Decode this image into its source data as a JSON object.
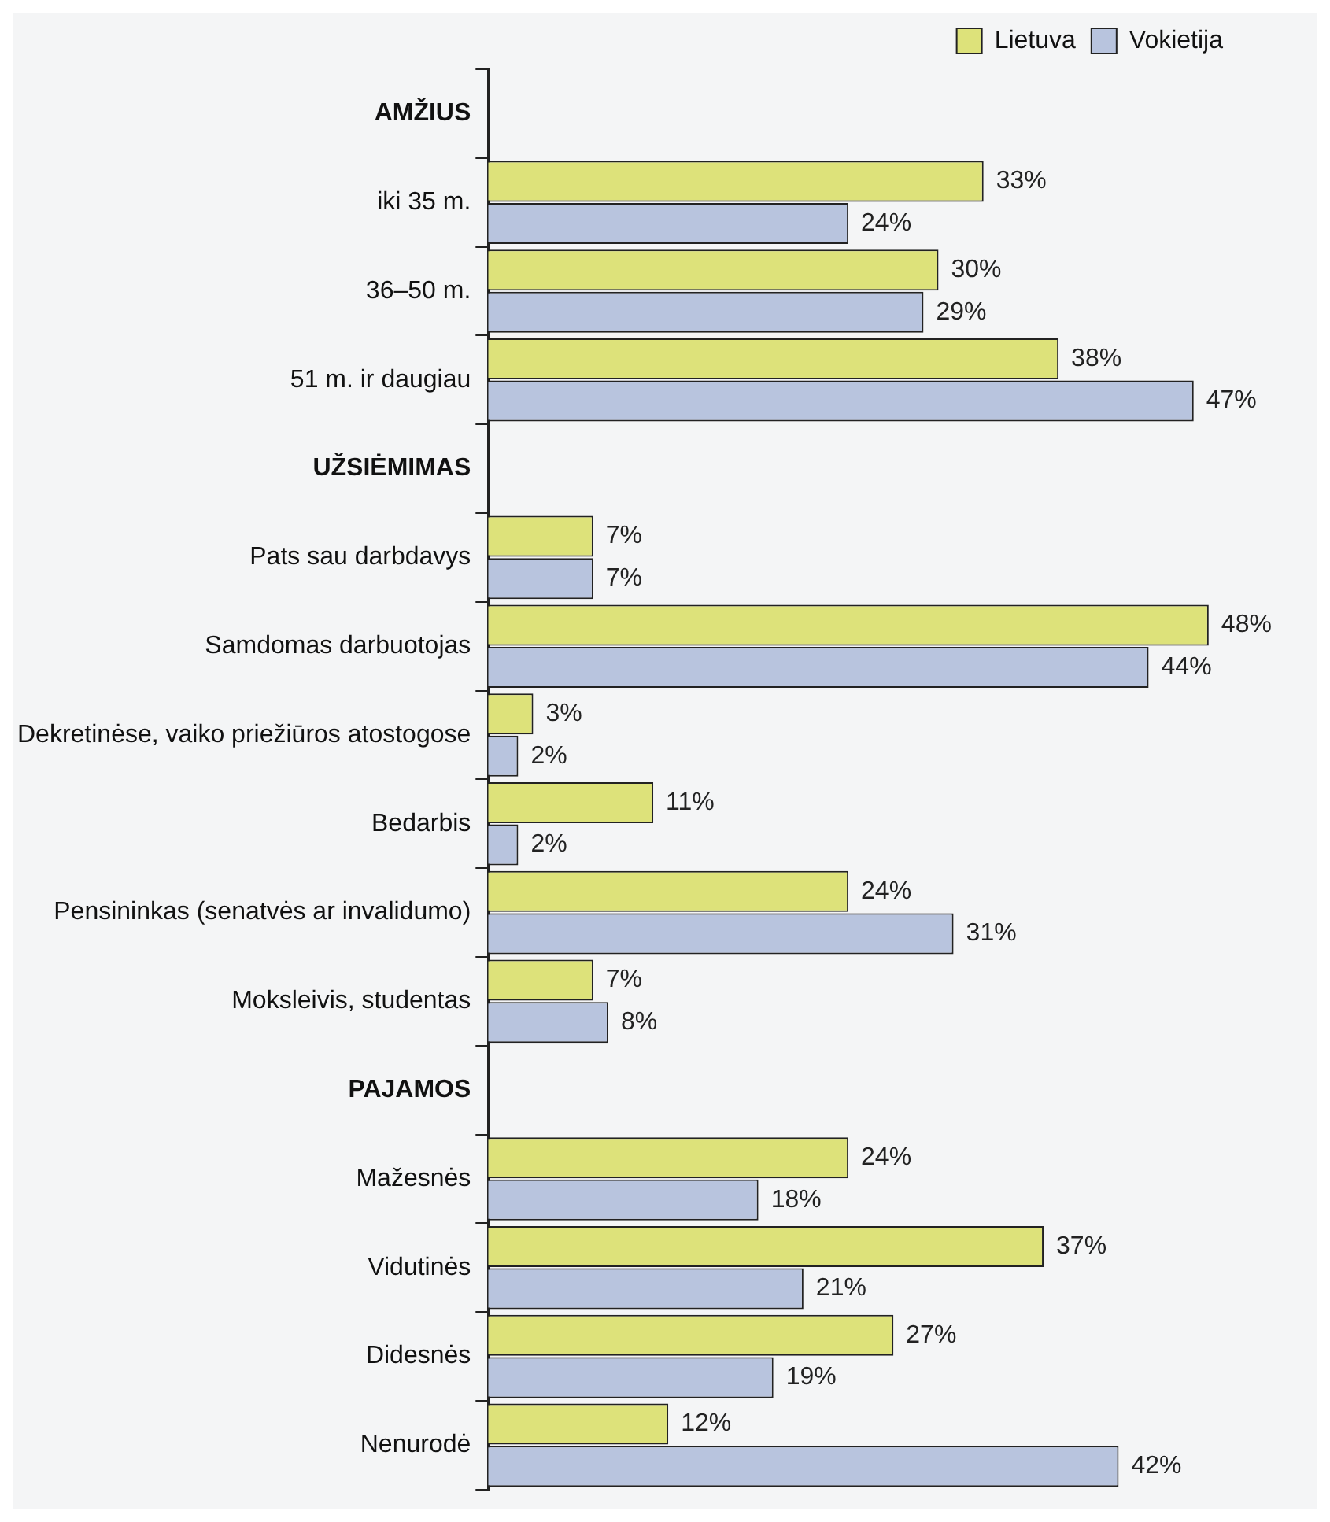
{
  "chart_data": {
    "type": "bar",
    "orientation": "horizontal",
    "legend": "top right",
    "categories": [
      "AMŽIUS",
      "iki 35 m.",
      "36–50 m.",
      "51 m. ir daugiau",
      "UŽSIĖMIMAS",
      "Pats sau darbdavys",
      "Samdomas darbuotojas",
      "Dekretinėse, vaiko priežiūros atostogose",
      "Bedarbis",
      "Pensininkas (senatvės ar invalidumo)",
      "Moksleivis, studentas",
      "PAJAMOS",
      "Mažesnės",
      "Vidutinės",
      "Didesnės",
      "Nenurodė"
    ],
    "series": [
      {
        "name": "Lietuva",
        "color": "#dde27a",
        "values": [
          null,
          33,
          30,
          38,
          null,
          7,
          48,
          3,
          11,
          24,
          7,
          null,
          24,
          37,
          27,
          12
        ],
        "value_labels": [
          null,
          "33%",
          "30%",
          "38%",
          null,
          "7%",
          "48%",
          "3%",
          "11%",
          "24%",
          "7%",
          null,
          "24%",
          "37%",
          "27%",
          "12%"
        ]
      },
      {
        "name": "Vokietija",
        "color": "#b8c4de",
        "values": [
          null,
          24,
          29,
          47,
          null,
          7,
          44,
          2,
          2,
          31,
          8,
          null,
          18,
          21,
          19,
          42
        ],
        "value_labels": [
          null,
          "24%",
          "29%",
          "47%",
          null,
          "7%",
          "44%",
          "2%",
          "2%",
          "31%",
          "8%",
          null,
          "18%",
          "21%",
          "19%",
          "42%"
        ]
      }
    ]
  }
}
